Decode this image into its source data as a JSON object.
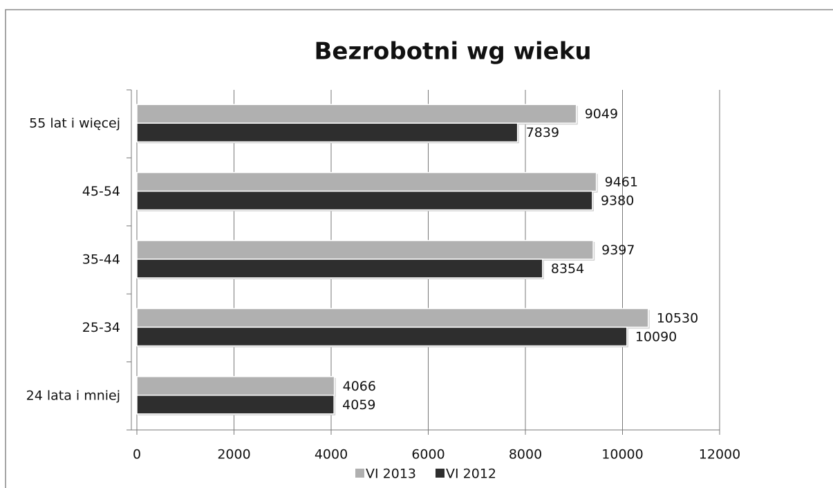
{
  "chart_data": {
    "type": "bar",
    "orientation": "horizontal",
    "title": "Bezrobotni wg wieku",
    "categories": [
      "55 lat i więcej",
      "45-54",
      "35-44",
      "25-34",
      "24 lata i mniej"
    ],
    "series": [
      {
        "name": "VI 2013",
        "color": "#b0b0b0",
        "values": [
          9049,
          9461,
          9397,
          10530,
          4066
        ]
      },
      {
        "name": "VI 2012",
        "color": "#2e2e2e",
        "values": [
          7839,
          9380,
          8354,
          10090,
          4059
        ]
      }
    ],
    "xlim": [
      0,
      12000
    ],
    "xticks": [
      0,
      2000,
      4000,
      6000,
      8000,
      10000,
      12000
    ],
    "grid": true,
    "legend": "bottom"
  }
}
